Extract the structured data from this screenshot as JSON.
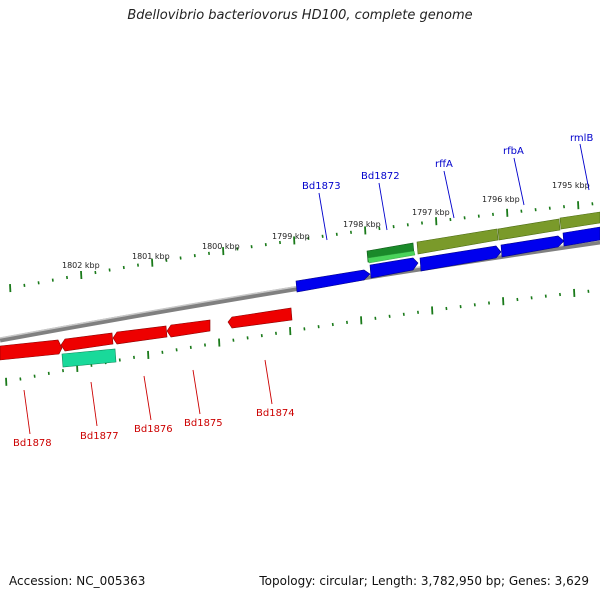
{
  "title": "Bdellovibrio bacteriovorus HD100, complete genome",
  "footer": {
    "accession": "Accession: NC_005363",
    "summary": "Topology: circular; Length: 3,782,950 bp; Genes: 3,629"
  },
  "colors": {
    "forward_gene": "#0000ee",
    "reverse_gene": "#ee0000",
    "forward_label": "#0000cc",
    "reverse_label": "#cc0000",
    "trna_gene": "#1a8a2a",
    "rna_gene": "#7a9a2a",
    "reverse_other": "#19d99a",
    "tick": "#1a7a1a",
    "backbone": "#888888"
  },
  "scale_labels": [
    "1802 kbp",
    "1801 kbp",
    "1800 kbp",
    "1799 kbp",
    "1798 kbp",
    "1797 kbp",
    "1796 kbp",
    "1795 kbp"
  ],
  "genes_forward": [
    "Bd1873",
    "Bd1872",
    "rffA",
    "rfbA",
    "rmlB"
  ],
  "genes_reverse": [
    "Bd1878",
    "Bd1877",
    "Bd1876",
    "Bd1875",
    "Bd1874"
  ]
}
